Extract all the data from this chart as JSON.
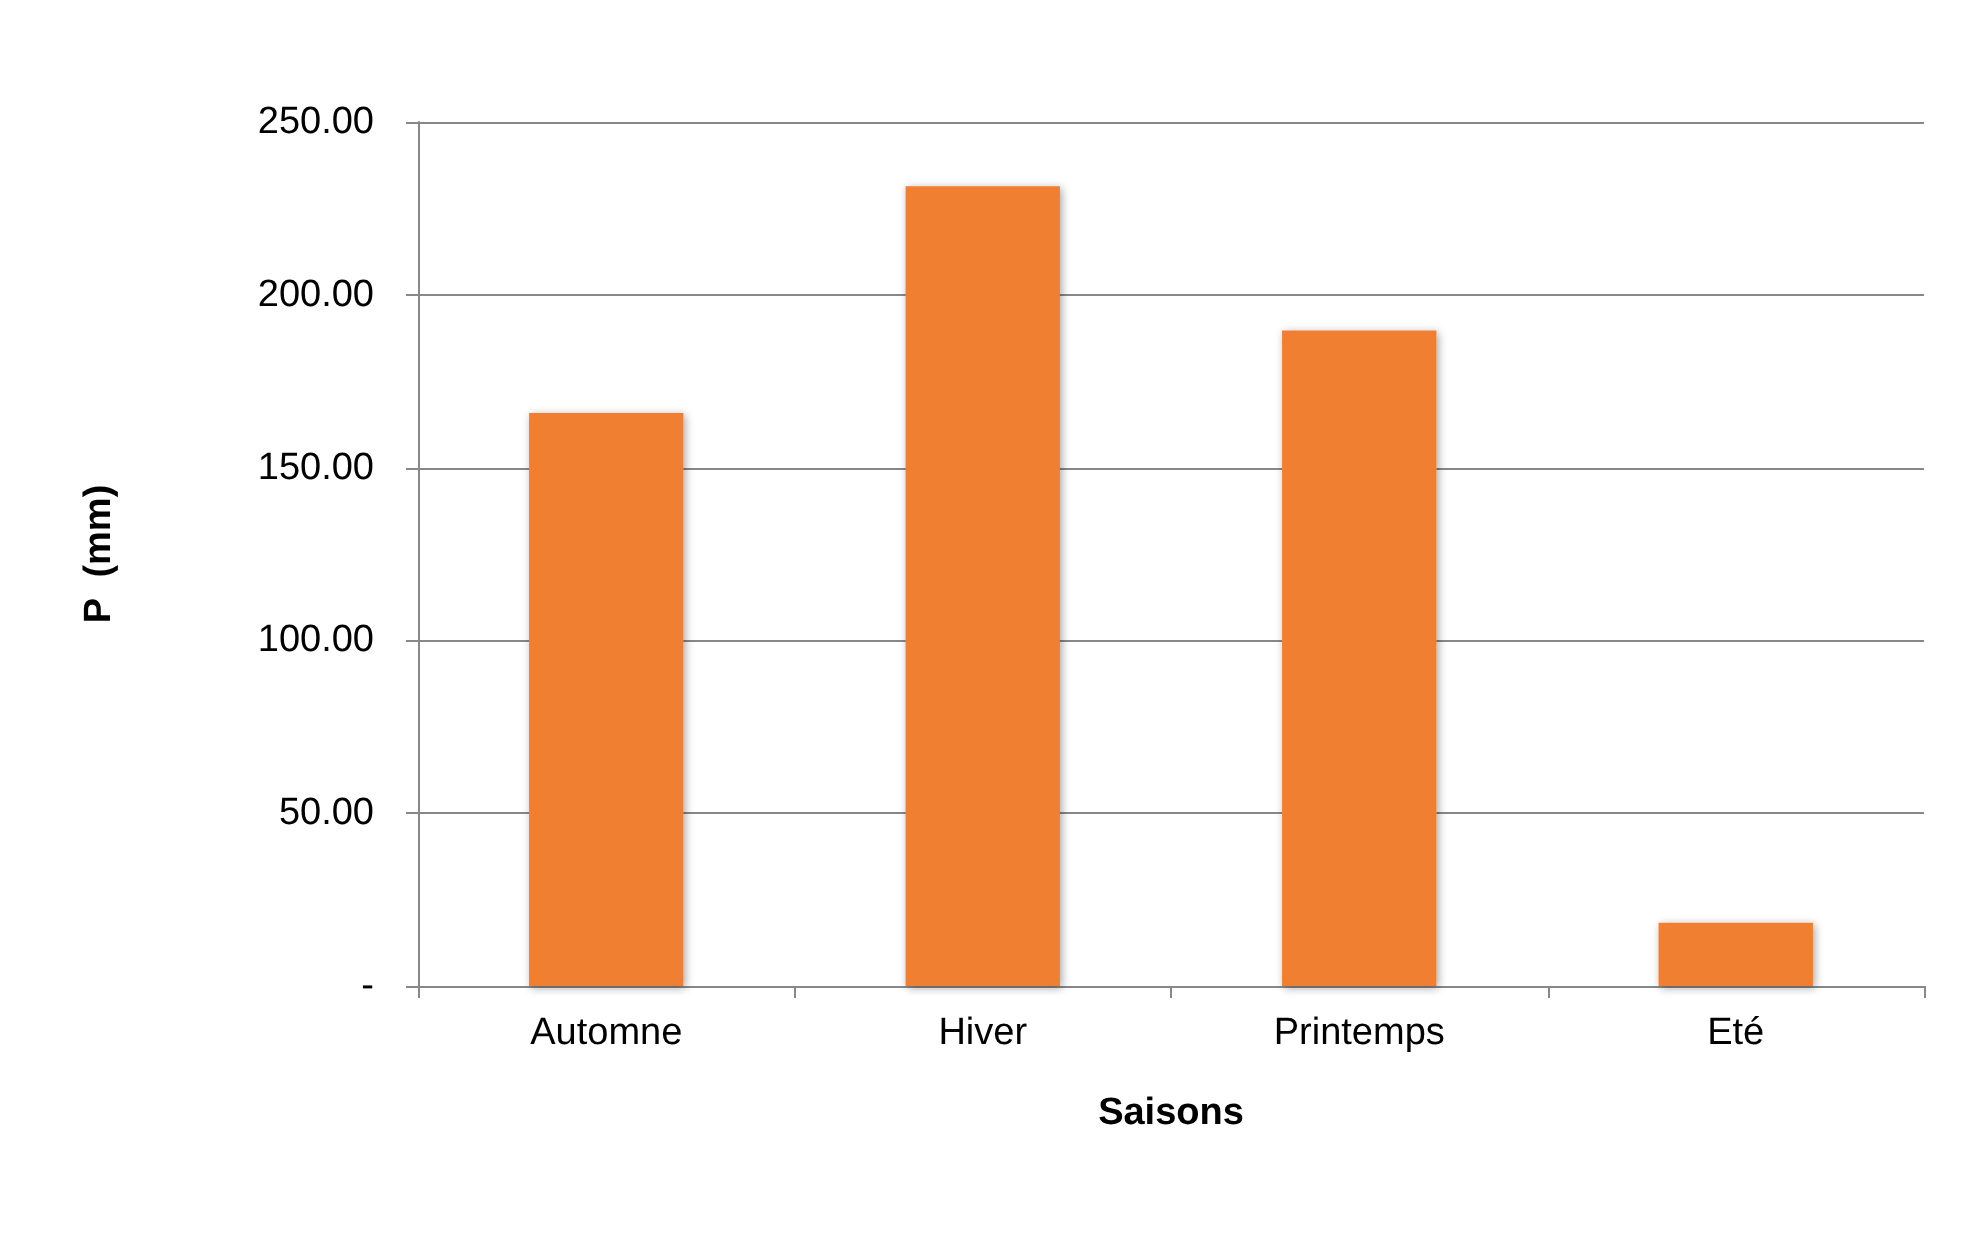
{
  "chart_data": {
    "type": "bar",
    "xlabel": "Saisons",
    "ylabel": "P  (mm)",
    "categories": [
      "Automne",
      "Hiver",
      "Printemps",
      "Eté"
    ],
    "values": [
      165.8,
      231.4,
      189.7,
      18.3
    ],
    "color": "#f07f30",
    "ylim": [
      0,
      250
    ],
    "yticks": [
      {
        "value": 0,
        "label": "-"
      },
      {
        "value": 50,
        "label": "50.00"
      },
      {
        "value": 100,
        "label": "100.00"
      },
      {
        "value": 150,
        "label": "150.00"
      },
      {
        "value": 200,
        "label": "200.00"
      },
      {
        "value": 250,
        "label": "250.00"
      }
    ],
    "grid": "y"
  }
}
